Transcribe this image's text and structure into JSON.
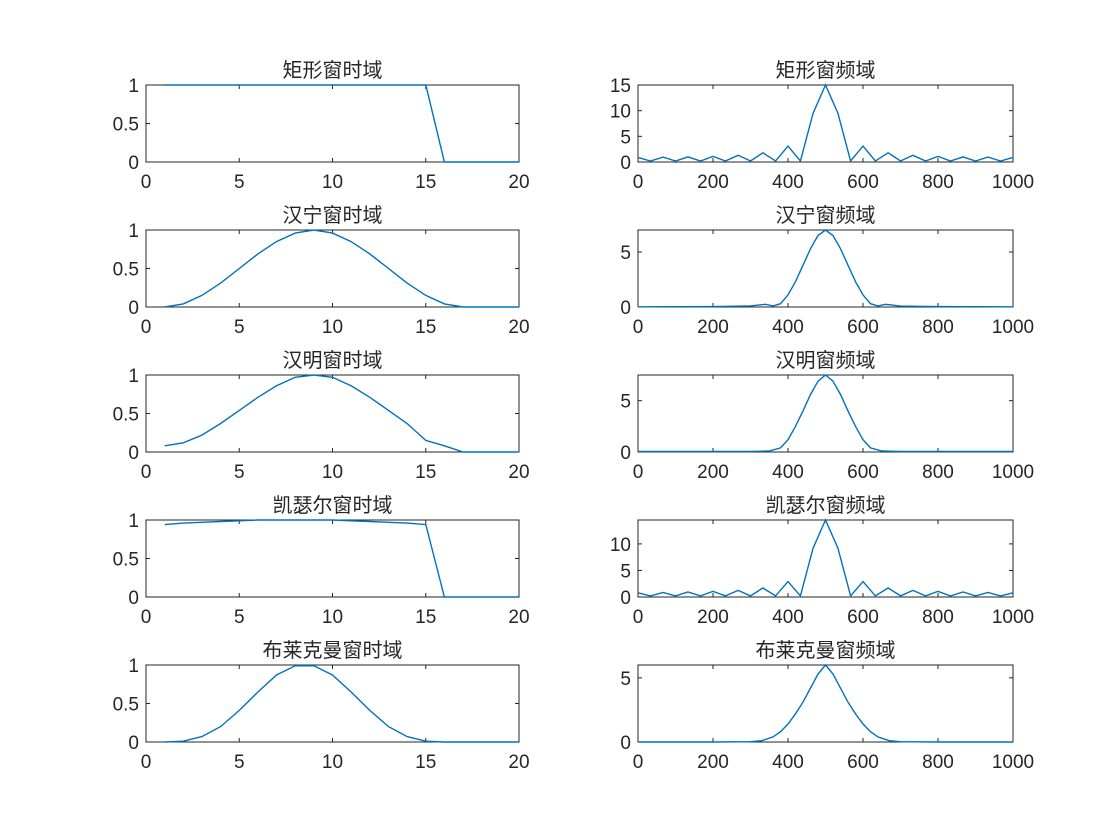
{
  "figure": {
    "background": "#ffffff",
    "axis_color": "#262626",
    "line_color": "#0072bd"
  },
  "chart_data": [
    {
      "type": "line",
      "title": "矩形窗时域",
      "xlim": [
        0,
        20
      ],
      "ylim": [
        0,
        1
      ],
      "xticks": [
        0,
        5,
        10,
        15,
        20
      ],
      "yticks": [
        0,
        0.5,
        1
      ],
      "xtick_labels": [
        "0",
        "5",
        "10",
        "15",
        "20"
      ],
      "ytick_labels": [
        "0",
        "0.5",
        "1"
      ],
      "series": [
        {
          "x": [
            1,
            2,
            3,
            4,
            5,
            6,
            7,
            8,
            9,
            10,
            11,
            12,
            13,
            14,
            15,
            16,
            17,
            18,
            19,
            20
          ],
          "y": [
            1,
            1,
            1,
            1,
            1,
            1,
            1,
            1,
            1,
            1,
            1,
            1,
            1,
            1,
            1,
            0,
            0,
            0,
            0,
            0
          ]
        }
      ]
    },
    {
      "type": "line",
      "title": "矩形窗频域",
      "xlim": [
        0,
        1000
      ],
      "ylim": [
        0,
        15
      ],
      "xticks": [
        0,
        200,
        400,
        600,
        800,
        1000
      ],
      "yticks": [
        0,
        5,
        10,
        15
      ],
      "xtick_labels": [
        "0",
        "200",
        "400",
        "600",
        "800",
        "1000"
      ],
      "ytick_labels": [
        "0",
        "5",
        "10",
        "15"
      ],
      "series": [
        {
          "x": [
            0,
            33,
            67,
            100,
            133,
            167,
            200,
            233,
            267,
            300,
            333,
            367,
            400,
            433,
            467,
            500,
            533,
            567,
            600,
            633,
            667,
            700,
            733,
            767,
            800,
            833,
            867,
            900,
            933,
            967,
            1000
          ],
          "y": [
            0.9,
            0.2,
            0.95,
            0.2,
            1.0,
            0.2,
            1.1,
            0.2,
            1.3,
            0.2,
            1.8,
            0.2,
            3.1,
            0.2,
            9.5,
            15.0,
            9.5,
            0.2,
            3.1,
            0.2,
            1.8,
            0.2,
            1.3,
            0.2,
            1.1,
            0.2,
            1.0,
            0.2,
            0.95,
            0.2,
            0.9
          ]
        }
      ]
    },
    {
      "type": "line",
      "title": "汉宁窗时域",
      "xlim": [
        0,
        20
      ],
      "ylim": [
        0,
        1
      ],
      "xticks": [
        0,
        5,
        10,
        15,
        20
      ],
      "yticks": [
        0,
        0.5,
        1
      ],
      "xtick_labels": [
        "0",
        "5",
        "10",
        "15",
        "20"
      ],
      "ytick_labels": [
        "0",
        "0.5",
        "1"
      ],
      "series": [
        {
          "x": [
            1,
            2,
            3,
            4,
            5,
            6,
            7,
            8,
            9,
            10,
            11,
            12,
            13,
            14,
            15,
            16,
            17,
            18,
            19,
            20
          ],
          "y": [
            0,
            0.04,
            0.15,
            0.31,
            0.5,
            0.69,
            0.85,
            0.96,
            1.0,
            0.96,
            0.85,
            0.69,
            0.5,
            0.31,
            0.15,
            0.04,
            0,
            0,
            0,
            0
          ]
        }
      ]
    },
    {
      "type": "line",
      "title": "汉宁窗频域",
      "xlim": [
        0,
        1000
      ],
      "ylim": [
        0,
        7
      ],
      "xticks": [
        0,
        200,
        400,
        600,
        800,
        1000
      ],
      "yticks": [
        0,
        5
      ],
      "xtick_labels": [
        "0",
        "200",
        "400",
        "600",
        "800",
        "1000"
      ],
      "ytick_labels": [
        "0",
        "5"
      ],
      "series": [
        {
          "x": [
            0,
            100,
            200,
            300,
            340,
            360,
            380,
            400,
            420,
            440,
            460,
            480,
            500,
            520,
            540,
            560,
            580,
            600,
            620,
            640,
            660,
            700,
            800,
            900,
            1000
          ],
          "y": [
            0.02,
            0.03,
            0.04,
            0.1,
            0.25,
            0.1,
            0.3,
            1.1,
            2.3,
            3.8,
            5.3,
            6.5,
            7.0,
            6.5,
            5.3,
            3.8,
            2.3,
            1.1,
            0.3,
            0.1,
            0.25,
            0.08,
            0.04,
            0.03,
            0.02
          ]
        }
      ]
    },
    {
      "type": "line",
      "title": "汉明窗时域",
      "xlim": [
        0,
        20
      ],
      "ylim": [
        0,
        1
      ],
      "xticks": [
        0,
        5,
        10,
        15,
        20
      ],
      "yticks": [
        0,
        0.5,
        1
      ],
      "xtick_labels": [
        "0",
        "5",
        "10",
        "15",
        "20"
      ],
      "ytick_labels": [
        "0",
        "0.5",
        "1"
      ],
      "series": [
        {
          "x": [
            1,
            2,
            3,
            4,
            5,
            6,
            7,
            8,
            9,
            10,
            11,
            12,
            13,
            14,
            15,
            16,
            17,
            18,
            19,
            20
          ],
          "y": [
            0.08,
            0.12,
            0.22,
            0.37,
            0.54,
            0.71,
            0.86,
            0.97,
            1.0,
            0.97,
            0.86,
            0.71,
            0.54,
            0.37,
            0.15,
            0.08,
            0,
            0,
            0,
            0
          ]
        }
      ]
    },
    {
      "type": "line",
      "title": "汉明窗频域",
      "xlim": [
        0,
        1000
      ],
      "ylim": [
        0,
        7.5
      ],
      "xticks": [
        0,
        200,
        400,
        600,
        800,
        1000
      ],
      "yticks": [
        0,
        5
      ],
      "xtick_labels": [
        "0",
        "200",
        "400",
        "600",
        "800",
        "1000"
      ],
      "ytick_labels": [
        "0",
        "5"
      ],
      "series": [
        {
          "x": [
            0,
            100,
            200,
            300,
            350,
            380,
            400,
            420,
            440,
            460,
            480,
            500,
            520,
            540,
            560,
            580,
            600,
            620,
            650,
            700,
            800,
            900,
            1000
          ],
          "y": [
            0.05,
            0.05,
            0.05,
            0.05,
            0.1,
            0.4,
            1.2,
            2.5,
            4.0,
            5.6,
            6.9,
            7.5,
            6.9,
            5.6,
            4.0,
            2.5,
            1.2,
            0.4,
            0.1,
            0.05,
            0.05,
            0.05,
            0.05
          ]
        }
      ]
    },
    {
      "type": "line",
      "title": "凯瑟尔窗时域",
      "xlim": [
        0,
        20
      ],
      "ylim": [
        0,
        1
      ],
      "xticks": [
        0,
        5,
        10,
        15,
        20
      ],
      "yticks": [
        0,
        0.5,
        1
      ],
      "xtick_labels": [
        "0",
        "5",
        "10",
        "15",
        "20"
      ],
      "ytick_labels": [
        "0",
        "0.5",
        "1"
      ],
      "series": [
        {
          "x": [
            1,
            2,
            3,
            4,
            5,
            6,
            7,
            8,
            9,
            10,
            11,
            12,
            13,
            14,
            15,
            16,
            17,
            18,
            19,
            20
          ],
          "y": [
            0.94,
            0.96,
            0.97,
            0.98,
            0.99,
            1.0,
            1.0,
            1.0,
            1.0,
            1.0,
            0.99,
            0.98,
            0.97,
            0.96,
            0.94,
            0,
            0,
            0,
            0,
            0
          ]
        }
      ]
    },
    {
      "type": "line",
      "title": "凯瑟尔窗频域",
      "xlim": [
        0,
        1000
      ],
      "ylim": [
        0,
        14.5
      ],
      "xticks": [
        0,
        200,
        400,
        600,
        800,
        1000
      ],
      "yticks": [
        0,
        5,
        10
      ],
      "xtick_labels": [
        "0",
        "200",
        "400",
        "600",
        "800",
        "1000"
      ],
      "ytick_labels": [
        "0",
        "5",
        "10"
      ],
      "series": [
        {
          "x": [
            0,
            33,
            67,
            100,
            133,
            167,
            200,
            233,
            267,
            300,
            333,
            367,
            400,
            433,
            467,
            500,
            533,
            567,
            600,
            633,
            667,
            700,
            733,
            767,
            800,
            833,
            867,
            900,
            933,
            967,
            1000
          ],
          "y": [
            0.8,
            0.2,
            0.85,
            0.2,
            0.95,
            0.2,
            1.05,
            0.2,
            1.25,
            0.2,
            1.7,
            0.2,
            2.9,
            0.2,
            9.2,
            14.5,
            9.2,
            0.2,
            2.9,
            0.2,
            1.7,
            0.2,
            1.25,
            0.2,
            1.05,
            0.2,
            0.95,
            0.2,
            0.85,
            0.2,
            0.8
          ]
        }
      ]
    },
    {
      "type": "line",
      "title": "布莱克曼窗时域",
      "xlim": [
        0,
        20
      ],
      "ylim": [
        0,
        1
      ],
      "xticks": [
        0,
        5,
        10,
        15,
        20
      ],
      "yticks": [
        0,
        0.5,
        1
      ],
      "xtick_labels": [
        "0",
        "5",
        "10",
        "15",
        "20"
      ],
      "ytick_labels": [
        "0",
        "0.5",
        "1"
      ],
      "series": [
        {
          "x": [
            1,
            2,
            3,
            4,
            5,
            6,
            7,
            8,
            9,
            10,
            11,
            12,
            13,
            14,
            15,
            16,
            17,
            18,
            19,
            20
          ],
          "y": [
            0,
            0.01,
            0.07,
            0.2,
            0.41,
            0.65,
            0.87,
            0.99,
            0.99,
            0.87,
            0.65,
            0.41,
            0.2,
            0.07,
            0.01,
            0,
            0,
            0,
            0,
            0
          ]
        }
      ]
    },
    {
      "type": "line",
      "title": "布莱克曼窗频域",
      "xlim": [
        0,
        1000
      ],
      "ylim": [
        0,
        6
      ],
      "xticks": [
        0,
        200,
        400,
        600,
        800,
        1000
      ],
      "yticks": [
        0,
        5
      ],
      "xtick_labels": [
        "0",
        "200",
        "400",
        "600",
        "800",
        "1000"
      ],
      "ytick_labels": [
        "0",
        "5"
      ],
      "series": [
        {
          "x": [
            0,
            100,
            200,
            300,
            330,
            360,
            380,
            400,
            420,
            440,
            460,
            480,
            500,
            520,
            540,
            560,
            580,
            600,
            620,
            640,
            670,
            700,
            800,
            900,
            1000
          ],
          "y": [
            0,
            0,
            0,
            0.02,
            0.1,
            0.4,
            0.8,
            1.4,
            2.2,
            3.1,
            4.2,
            5.3,
            6.0,
            5.3,
            4.2,
            3.1,
            2.2,
            1.4,
            0.8,
            0.4,
            0.1,
            0.02,
            0,
            0,
            0
          ]
        }
      ]
    }
  ]
}
